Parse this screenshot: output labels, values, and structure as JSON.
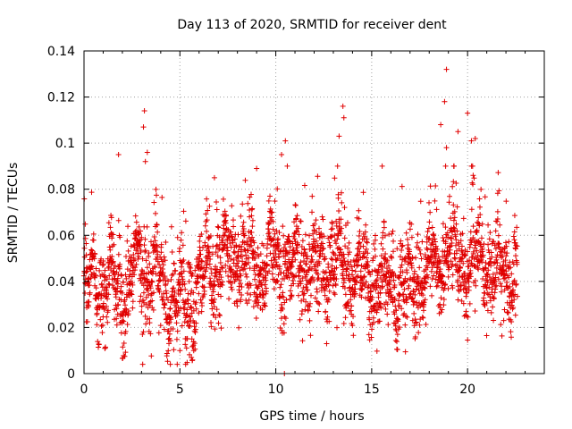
{
  "chart_data": {
    "type": "scatter",
    "title": "Day 113 of 2020, SRMTID for receiver dent",
    "xlabel": "GPS time / hours",
    "ylabel": "SRMTID / TECUs",
    "xlim": [
      0,
      24
    ],
    "ylim": [
      0,
      0.14
    ],
    "x_ticks": [
      0,
      5,
      10,
      15,
      20
    ],
    "x_tick_labels": [
      "0",
      "5",
      "10",
      "15",
      "20"
    ],
    "y_ticks": [
      0,
      0.02,
      0.04,
      0.06,
      0.08,
      0.1,
      0.12,
      0.14
    ],
    "y_tick_labels": [
      "0",
      "0.02",
      "0.04",
      "0.06",
      "0.08",
      "0.1",
      "0.12",
      "0.14"
    ],
    "grid": true,
    "marker": "+",
    "marker_color": "#e00000",
    "series": [
      {
        "name": "SRMTID",
        "x_range": [
          0,
          22.6
        ],
        "approx_point_count": 2700,
        "baseline_profile": [
          [
            0.0,
            0.035
          ],
          [
            1.0,
            0.038
          ],
          [
            2.0,
            0.036
          ],
          [
            3.0,
            0.045
          ],
          [
            4.0,
            0.04
          ],
          [
            5.0,
            0.028
          ],
          [
            6.0,
            0.036
          ],
          [
            7.0,
            0.048
          ],
          [
            8.0,
            0.05
          ],
          [
            9.0,
            0.046
          ],
          [
            10.0,
            0.05
          ],
          [
            11.0,
            0.045
          ],
          [
            12.0,
            0.044
          ],
          [
            13.0,
            0.05
          ],
          [
            14.0,
            0.042
          ],
          [
            15.0,
            0.04
          ],
          [
            16.0,
            0.038
          ],
          [
            17.0,
            0.036
          ],
          [
            18.0,
            0.045
          ],
          [
            19.0,
            0.052
          ],
          [
            20.0,
            0.048
          ],
          [
            21.0,
            0.046
          ],
          [
            22.0,
            0.042
          ],
          [
            22.6,
            0.045
          ]
        ],
        "notable_points": [
          [
            3.15,
            0.114
          ],
          [
            3.1,
            0.107
          ],
          [
            3.3,
            0.096
          ],
          [
            3.2,
            0.092
          ],
          [
            1.8,
            0.095
          ],
          [
            6.8,
            0.085
          ],
          [
            9.0,
            0.089
          ],
          [
            10.5,
            0.101
          ],
          [
            10.3,
            0.095
          ],
          [
            10.6,
            0.09
          ],
          [
            10.45,
            0.0
          ],
          [
            13.5,
            0.116
          ],
          [
            13.55,
            0.111
          ],
          [
            13.3,
            0.103
          ],
          [
            18.9,
            0.132
          ],
          [
            18.8,
            0.118
          ],
          [
            18.6,
            0.108
          ],
          [
            18.9,
            0.098
          ],
          [
            19.5,
            0.105
          ],
          [
            20.0,
            0.113
          ],
          [
            20.2,
            0.101
          ],
          [
            20.4,
            0.102
          ],
          [
            5.0,
            0.01
          ],
          [
            5.6,
            0.007
          ],
          [
            1.1,
            0.011
          ]
        ]
      }
    ]
  }
}
